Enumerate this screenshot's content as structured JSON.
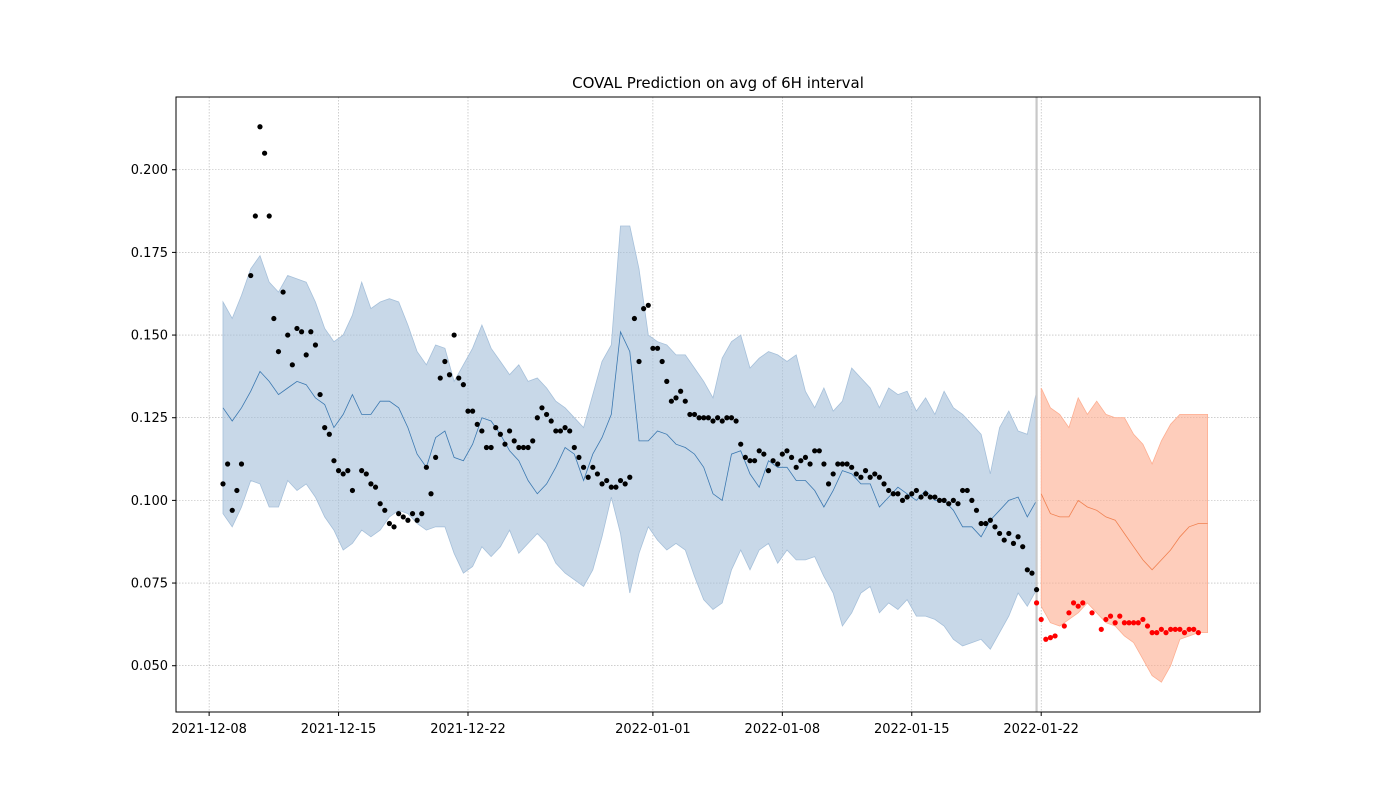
{
  "chart_data": {
    "type": "scatter",
    "title": "COVAL Prediction on avg of 6H interval",
    "xlabel": "",
    "ylabel": "",
    "x_axis": {
      "type": "date",
      "range": [
        "2021-12-06T05:00",
        "2022-02-02T20:00"
      ],
      "ticks": [
        "2021-12-08",
        "2021-12-15",
        "2021-12-22",
        "2022-01-01",
        "2022-01-08",
        "2022-01-15",
        "2022-01-22"
      ]
    },
    "y_axis": {
      "range": [
        0.036,
        0.222
      ],
      "ticks": [
        0.05,
        0.075,
        0.1,
        0.125,
        0.15,
        0.175,
        0.2
      ],
      "tick_labels": [
        "0.050",
        "0.075",
        "0.100",
        "0.125",
        "0.150",
        "0.175",
        "0.200"
      ]
    },
    "grid": true,
    "split_date": "2022-01-21T18:00",
    "colors": {
      "train_band": "#a6c0da",
      "train_line": "#3b78b0",
      "test_band": "#fdae91",
      "test_line": "#f08050",
      "actual_train": "#000000",
      "actual_test": "#ff0000",
      "split_line": "#c8c8c8",
      "grid": "#b0b0b0"
    },
    "series": [
      {
        "role": "fit-band",
        "x": [
          "2021-12-08T18:00",
          "2021-12-09T06:00",
          "2021-12-09T18:00",
          "2021-12-10T06:00",
          "2021-12-10T18:00",
          "2021-12-11T06:00",
          "2021-12-11T18:00",
          "2021-12-12T06:00",
          "2021-12-12T18:00",
          "2021-12-13T06:00",
          "2021-12-13T18:00",
          "2021-12-14T06:00",
          "2021-12-14T18:00",
          "2021-12-15T06:00",
          "2021-12-15T18:00",
          "2021-12-16T06:00",
          "2021-12-16T18:00",
          "2021-12-17T06:00",
          "2021-12-17T18:00",
          "2021-12-18T06:00",
          "2021-12-18T18:00",
          "2021-12-19T06:00",
          "2021-12-19T18:00",
          "2021-12-20T06:00",
          "2021-12-20T18:00",
          "2021-12-21T06:00",
          "2021-12-21T18:00",
          "2021-12-22T06:00",
          "2021-12-22T18:00",
          "2021-12-23T06:00",
          "2021-12-23T18:00",
          "2021-12-24T06:00",
          "2021-12-24T18:00",
          "2021-12-25T06:00",
          "2021-12-25T18:00",
          "2021-12-26T06:00",
          "2021-12-26T18:00",
          "2021-12-27T06:00",
          "2021-12-27T18:00",
          "2021-12-28T06:00",
          "2021-12-28T18:00",
          "2021-12-29T06:00",
          "2021-12-29T18:00",
          "2021-12-30T06:00",
          "2021-12-30T18:00",
          "2021-12-31T06:00",
          "2021-12-31T18:00",
          "2022-01-01T06:00",
          "2022-01-01T18:00",
          "2022-01-02T06:00",
          "2022-01-02T18:00",
          "2022-01-03T06:00",
          "2022-01-03T18:00",
          "2022-01-04T06:00",
          "2022-01-04T18:00",
          "2022-01-05T06:00",
          "2022-01-05T18:00",
          "2022-01-06T06:00",
          "2022-01-06T18:00",
          "2022-01-07T06:00",
          "2022-01-07T18:00",
          "2022-01-08T06:00",
          "2022-01-08T18:00",
          "2022-01-09T06:00",
          "2022-01-09T18:00",
          "2022-01-10T06:00",
          "2022-01-10T18:00",
          "2022-01-11T06:00",
          "2022-01-11T18:00",
          "2022-01-12T06:00",
          "2022-01-12T18:00",
          "2022-01-13T06:00",
          "2022-01-13T18:00",
          "2022-01-14T06:00",
          "2022-01-14T18:00",
          "2022-01-15T06:00",
          "2022-01-15T18:00",
          "2022-01-16T06:00",
          "2022-01-16T18:00",
          "2022-01-17T06:00",
          "2022-01-17T18:00",
          "2022-01-18T06:00",
          "2022-01-18T18:00",
          "2022-01-19T06:00",
          "2022-01-19T18:00",
          "2022-01-20T06:00",
          "2022-01-20T18:00",
          "2022-01-21T06:00",
          "2022-01-21T18:00"
        ],
        "upper": [
          0.16,
          0.155,
          0.162,
          0.17,
          0.174,
          0.166,
          0.163,
          0.168,
          0.167,
          0.166,
          0.16,
          0.152,
          0.148,
          0.15,
          0.156,
          0.166,
          0.158,
          0.16,
          0.161,
          0.16,
          0.153,
          0.145,
          0.141,
          0.147,
          0.146,
          0.136,
          0.141,
          0.146,
          0.153,
          0.146,
          0.142,
          0.138,
          0.141,
          0.136,
          0.137,
          0.134,
          0.13,
          0.128,
          0.125,
          0.122,
          0.132,
          0.142,
          0.147,
          0.183,
          0.183,
          0.17,
          0.15,
          0.148,
          0.147,
          0.144,
          0.144,
          0.14,
          0.136,
          0.131,
          0.143,
          0.148,
          0.15,
          0.14,
          0.143,
          0.145,
          0.144,
          0.142,
          0.144,
          0.133,
          0.128,
          0.134,
          0.127,
          0.13,
          0.14,
          0.137,
          0.134,
          0.128,
          0.134,
          0.132,
          0.133,
          0.127,
          0.131,
          0.126,
          0.133,
          0.128,
          0.126,
          0.123,
          0.12,
          0.108,
          0.122,
          0.127,
          0.121,
          0.12,
          0.133
        ],
        "lower": [
          0.096,
          0.092,
          0.098,
          0.106,
          0.105,
          0.098,
          0.098,
          0.106,
          0.103,
          0.105,
          0.101,
          0.095,
          0.091,
          0.085,
          0.087,
          0.091,
          0.089,
          0.091,
          0.095,
          0.097,
          0.096,
          0.093,
          0.091,
          0.092,
          0.092,
          0.084,
          0.078,
          0.08,
          0.086,
          0.083,
          0.086,
          0.091,
          0.084,
          0.087,
          0.09,
          0.087,
          0.081,
          0.078,
          0.076,
          0.074,
          0.079,
          0.089,
          0.101,
          0.09,
          0.072,
          0.084,
          0.092,
          0.088,
          0.085,
          0.087,
          0.085,
          0.077,
          0.07,
          0.067,
          0.069,
          0.079,
          0.085,
          0.079,
          0.085,
          0.087,
          0.081,
          0.085,
          0.082,
          0.082,
          0.083,
          0.077,
          0.072,
          0.062,
          0.066,
          0.072,
          0.074,
          0.066,
          0.069,
          0.067,
          0.07,
          0.065,
          0.065,
          0.064,
          0.062,
          0.058,
          0.056,
          0.057,
          0.058,
          0.055,
          0.06,
          0.065,
          0.072,
          0.068,
          0.073
        ],
        "yhat": [
          0.128,
          0.124,
          0.128,
          0.133,
          0.139,
          0.136,
          0.132,
          0.134,
          0.136,
          0.135,
          0.131,
          0.129,
          0.122,
          0.126,
          0.132,
          0.126,
          0.126,
          0.13,
          0.13,
          0.128,
          0.122,
          0.114,
          0.11,
          0.119,
          0.121,
          0.113,
          0.112,
          0.117,
          0.125,
          0.124,
          0.12,
          0.115,
          0.112,
          0.106,
          0.102,
          0.105,
          0.11,
          0.116,
          0.114,
          0.106,
          0.114,
          0.119,
          0.126,
          0.151,
          0.145,
          0.118,
          0.118,
          0.121,
          0.12,
          0.117,
          0.116,
          0.114,
          0.11,
          0.102,
          0.1,
          0.114,
          0.115,
          0.108,
          0.104,
          0.112,
          0.11,
          0.11,
          0.106,
          0.106,
          0.103,
          0.098,
          0.103,
          0.109,
          0.108,
          0.105,
          0.105,
          0.098,
          0.101,
          0.104,
          0.102,
          0.1,
          0.103,
          0.1,
          0.1,
          0.097,
          0.092,
          0.092,
          0.089,
          0.094,
          0.097,
          0.1,
          0.101,
          0.095,
          0.1
        ]
      },
      {
        "role": "forecast-band",
        "x": [
          "2022-01-22T00:00",
          "2022-01-22T12:00",
          "2022-01-23T00:00",
          "2022-01-23T12:00",
          "2022-01-24T00:00",
          "2022-01-24T12:00",
          "2022-01-25T00:00",
          "2022-01-25T12:00",
          "2022-01-26T00:00",
          "2022-01-26T12:00",
          "2022-01-27T00:00",
          "2022-01-27T12:00",
          "2022-01-28T00:00",
          "2022-01-28T12:00",
          "2022-01-29T00:00",
          "2022-01-29T12:00",
          "2022-01-30T00:00",
          "2022-01-30T12:00",
          "2022-01-31T00:00"
        ],
        "upper": [
          0.134,
          0.128,
          0.126,
          0.122,
          0.131,
          0.126,
          0.13,
          0.126,
          0.125,
          0.125,
          0.12,
          0.117,
          0.111,
          0.118,
          0.123,
          0.126,
          0.126,
          0.126,
          0.126
        ],
        "lower": [
          0.068,
          0.063,
          0.062,
          0.064,
          0.066,
          0.069,
          0.066,
          0.063,
          0.062,
          0.059,
          0.057,
          0.052,
          0.047,
          0.045,
          0.05,
          0.058,
          0.059,
          0.06,
          0.06
        ],
        "yhat": [
          0.102,
          0.096,
          0.095,
          0.095,
          0.1,
          0.098,
          0.097,
          0.095,
          0.094,
          0.09,
          0.086,
          0.082,
          0.079,
          0.082,
          0.085,
          0.089,
          0.092,
          0.093,
          0.093
        ]
      },
      {
        "name": "",
        "role": "actual-train",
        "values": [
          [
            0.105,
            0.111,
            0.097,
            0.103,
            0.111,
            0.168,
            0.186,
            0.213,
            0.205,
            0.186,
            0.155,
            0.145,
            0.163,
            0.15,
            0.141,
            0.152,
            0.151,
            0.144,
            0.151,
            0.147,
            0.132,
            0.122,
            0.12,
            0.112,
            0.109,
            0.108,
            0.109,
            0.103
          ],
          [
            0.109,
            0.108,
            0.105,
            0.104,
            0.099,
            0.097,
            0.093,
            0.092,
            0.096,
            0.095,
            0.094,
            0.096,
            0.094,
            0.096,
            0.11,
            0.102,
            0.113,
            0.137,
            0.142,
            0.138,
            0.15,
            0.137,
            0.135,
            0.127,
            0.127,
            0.123,
            0.121,
            0.116,
            0.116,
            0.122,
            0.12,
            0.117,
            0.121,
            0.118,
            0.116,
            0.116,
            0.116,
            0.118,
            0.125,
            0.128,
            0.126,
            0.124,
            0.121,
            0.121,
            0.122,
            0.121,
            0.116,
            0.113,
            0.11,
            0.107,
            0.11,
            0.108,
            0.105,
            0.106,
            0.104,
            0.104,
            0.106,
            0.105,
            0.107,
            0.155,
            0.142,
            0.158,
            0.159,
            0.146,
            0.146,
            0.142,
            0.136,
            0.13,
            0.131,
            0.133,
            0.13,
            0.126,
            0.126,
            0.125,
            0.125,
            0.125,
            0.124,
            0.125,
            0.124,
            0.125,
            0.125,
            0.124,
            0.117,
            0.113,
            0.112,
            0.112,
            0.115,
            0.114,
            0.109,
            0.112,
            0.111,
            0.114,
            0.115,
            0.113,
            0.11,
            0.112,
            0.113,
            0.111,
            0.115,
            0.115,
            0.111,
            0.105,
            0.108,
            0.111,
            0.111,
            0.111,
            0.11,
            0.108,
            0.107,
            0.109,
            0.107,
            0.108,
            0.107,
            0.105,
            0.103,
            0.102,
            0.102,
            0.1,
            0.101,
            0.102,
            0.103,
            0.101,
            0.102,
            0.101,
            0.101,
            0.1,
            0.1,
            0.099,
            0.1,
            0.099,
            0.103,
            0.103,
            0.1,
            0.097,
            0.093,
            0.093,
            0.094,
            0.092,
            0.09,
            0.088,
            0.09,
            0.087,
            0.089,
            0.086,
            0.079,
            0.078,
            0.073
          ]
        ],
        "dates_first": [
          "2021-12-08T18:00",
          "2021-12-09T00:00",
          "2021-12-09T06:00",
          "2021-12-09T12:00",
          "2021-12-09T18:00",
          "2021-12-10T06:00",
          "2021-12-10T12:00",
          "2021-12-10T18:00",
          "2021-12-11T00:00",
          "2021-12-11T06:00",
          "2021-12-11T12:00",
          "2021-12-11T18:00",
          "2021-12-12T00:00",
          "2021-12-12T06:00",
          "2021-12-12T12:00",
          "2021-12-12T18:00",
          "2021-12-13T00:00",
          "2021-12-13T06:00",
          "2021-12-13T12:00",
          "2021-12-13T18:00",
          "2021-12-14T00:00",
          "2021-12-14T06:00",
          "2021-12-14T12:00",
          "2021-12-14T18:00",
          "2021-12-15T00:00",
          "2021-12-15T06:00",
          "2021-12-15T12:00",
          "2021-12-15T18:00"
        ]
      },
      {
        "name": "",
        "role": "actual-test",
        "x": [
          "2022-01-21T18:00",
          "2022-01-22T00:00",
          "2022-01-22T06:00",
          "2022-01-22T12:00",
          "2022-01-22T18:00",
          "2022-01-23T06:00",
          "2022-01-23T12:00",
          "2022-01-23T18:00",
          "2022-01-24T00:00",
          "2022-01-24T06:00",
          "2022-01-24T18:00",
          "2022-01-25T06:00",
          "2022-01-25T12:00",
          "2022-01-25T18:00",
          "2022-01-26T00:00",
          "2022-01-26T06:00",
          "2022-01-26T12:00",
          "2022-01-26T18:00",
          "2022-01-27T00:00",
          "2022-01-27T06:00",
          "2022-01-27T12:00",
          "2022-01-27T18:00",
          "2022-01-28T00:00",
          "2022-01-28T06:00",
          "2022-01-28T12:00",
          "2022-01-28T18:00",
          "2022-01-29T00:00",
          "2022-01-29T06:00",
          "2022-01-29T12:00",
          "2022-01-29T18:00",
          "2022-01-30T00:00",
          "2022-01-30T06:00",
          "2022-01-30T12:00"
        ],
        "values": [
          0.069,
          0.064,
          0.058,
          0.0585,
          0.059,
          0.062,
          0.066,
          0.069,
          0.068,
          0.069,
          0.066,
          0.061,
          0.064,
          0.065,
          0.063,
          0.065,
          0.063,
          0.063,
          0.063,
          0.063,
          0.064,
          0.062,
          0.06,
          0.06,
          0.061,
          0.06,
          0.061,
          0.061,
          0.061,
          0.06,
          0.061,
          0.061,
          0.06
        ]
      }
    ]
  }
}
